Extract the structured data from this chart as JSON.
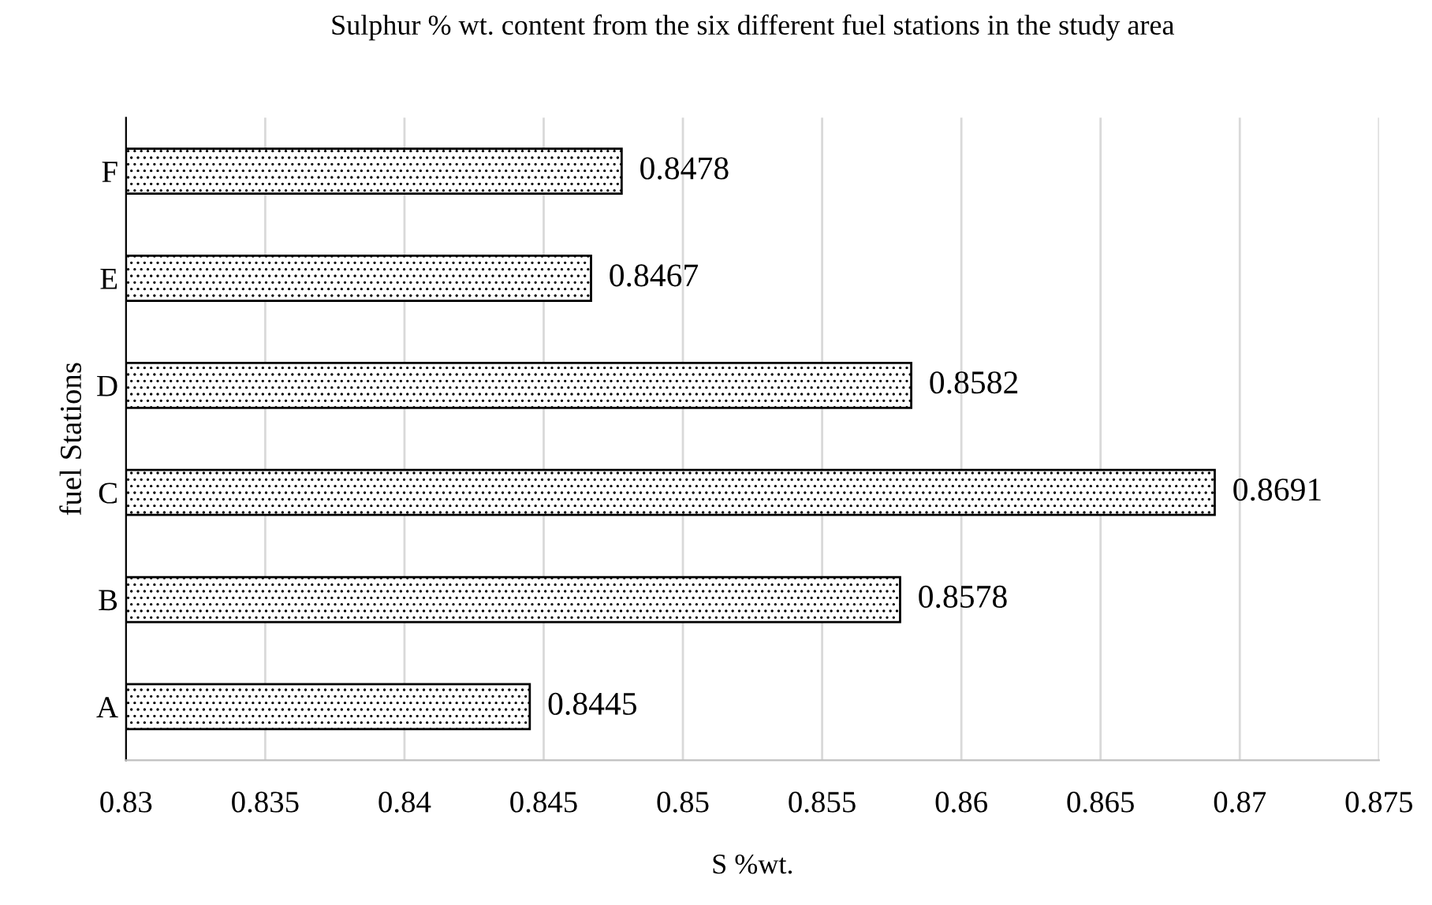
{
  "chart_data": {
    "type": "bar",
    "orientation": "horizontal",
    "title": "Sulphur % wt. content from the six different fuel stations in the study area",
    "xlabel": "S %wt.",
    "ylabel": "fuel Stations",
    "categories": [
      "F",
      "E",
      "D",
      "C",
      "B",
      "A"
    ],
    "values": [
      0.8478,
      0.8467,
      0.8582,
      0.8691,
      0.8578,
      0.8445
    ],
    "color": "#000000",
    "xlim": [
      0.83,
      0.875
    ],
    "xticks": [
      0.83,
      0.835,
      0.84,
      0.845,
      0.85,
      0.855,
      0.86,
      0.865,
      0.87,
      0.875
    ],
    "grid": "x",
    "data_labels": true
  }
}
